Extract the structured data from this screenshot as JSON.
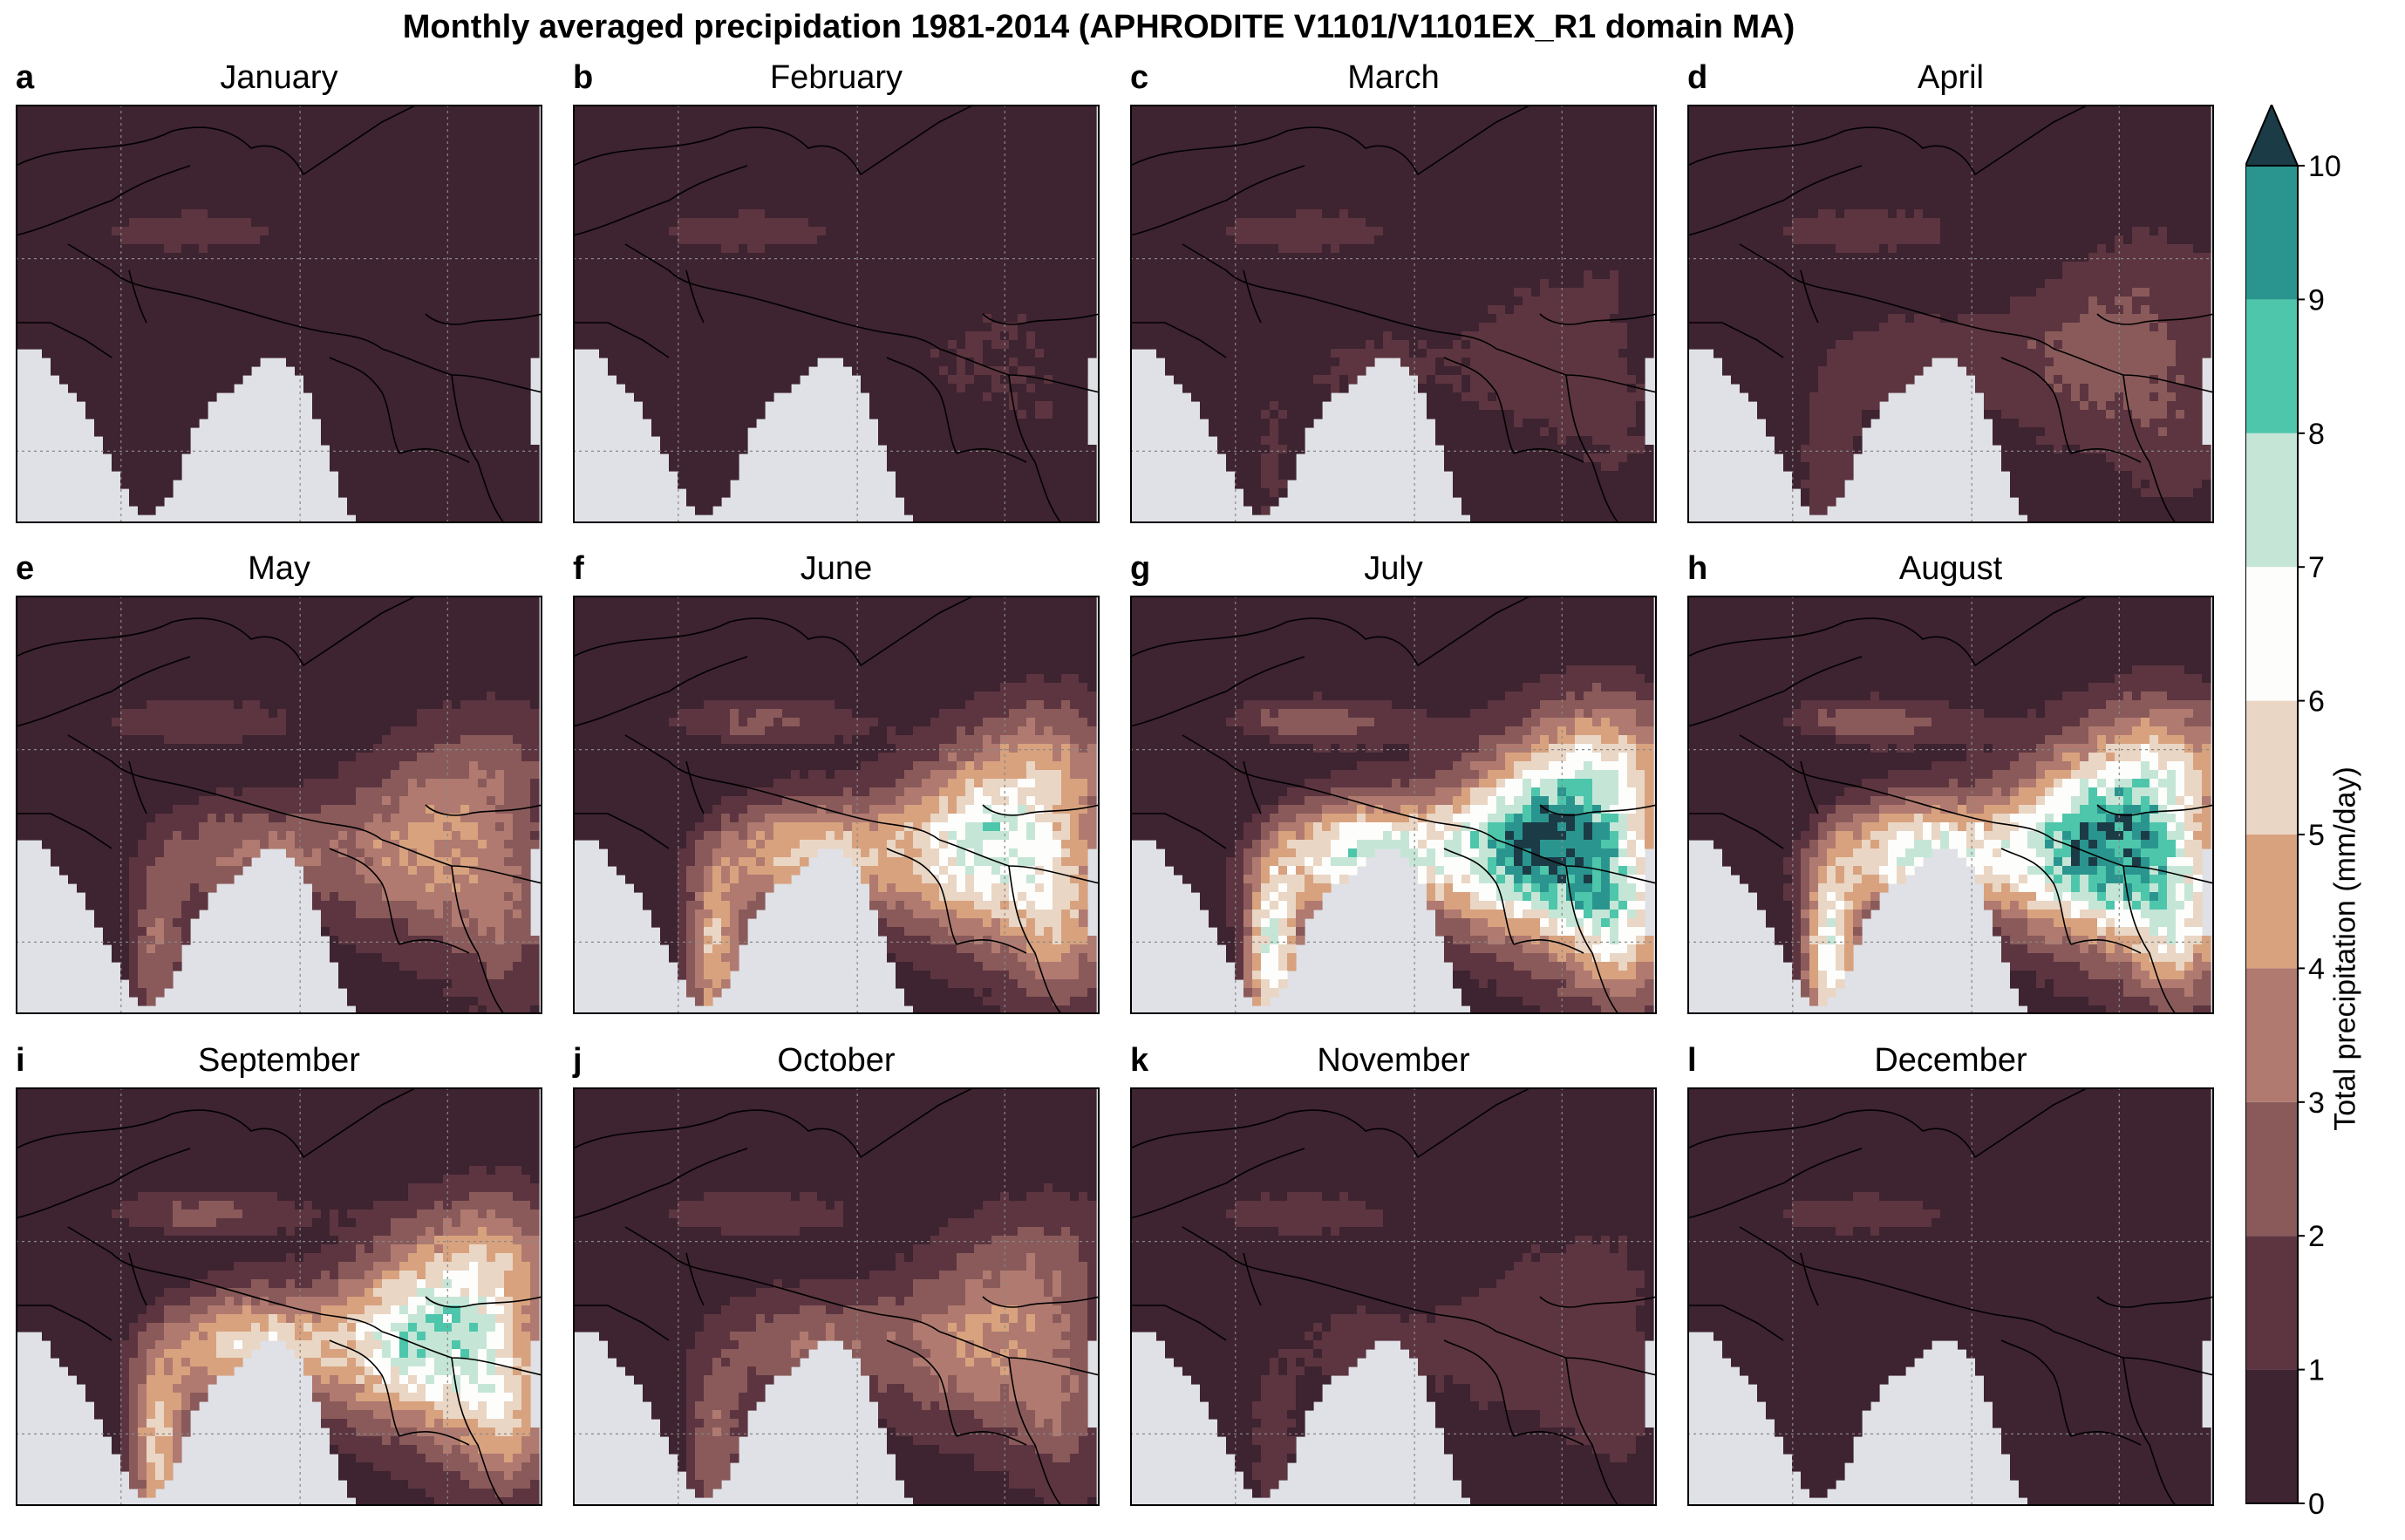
{
  "figure": {
    "title": "Monthly averaged precipidation 1981-2014 (APHRODITE V1101/V1101EX_R1 domain MA)"
  },
  "panels": [
    {
      "letter": "a",
      "month": "January",
      "intensity": 0.05
    },
    {
      "letter": "b",
      "month": "February",
      "intensity": 0.08
    },
    {
      "letter": "c",
      "month": "March",
      "intensity": 0.12
    },
    {
      "letter": "d",
      "month": "April",
      "intensity": 0.22
    },
    {
      "letter": "e",
      "month": "May",
      "intensity": 0.4
    },
    {
      "letter": "f",
      "month": "June",
      "intensity": 0.7
    },
    {
      "letter": "g",
      "month": "July",
      "intensity": 1.0
    },
    {
      "letter": "h",
      "month": "August",
      "intensity": 0.95
    },
    {
      "letter": "i",
      "month": "September",
      "intensity": 0.75
    },
    {
      "letter": "j",
      "month": "October",
      "intensity": 0.38
    },
    {
      "letter": "k",
      "month": "November",
      "intensity": 0.15
    },
    {
      "letter": "l",
      "month": "December",
      "intensity": 0.06
    }
  ],
  "colorbar": {
    "label": "Total precipitation (mm/day)",
    "ticks": [
      "0",
      "1",
      "2",
      "3",
      "4",
      "5",
      "6",
      "7",
      "8",
      "9",
      "10"
    ],
    "colors": [
      "#3e2330",
      "#5c3540",
      "#8a5a5a",
      "#b07a70",
      "#d8a27f",
      "#ead6c4",
      "#fdfdfb",
      "#c5e6d7",
      "#4ec6ab",
      "#2a958f",
      "#1e6a72"
    ],
    "extend_color": "#1b3b46",
    "ocean_color": "#dfe1e6"
  }
}
